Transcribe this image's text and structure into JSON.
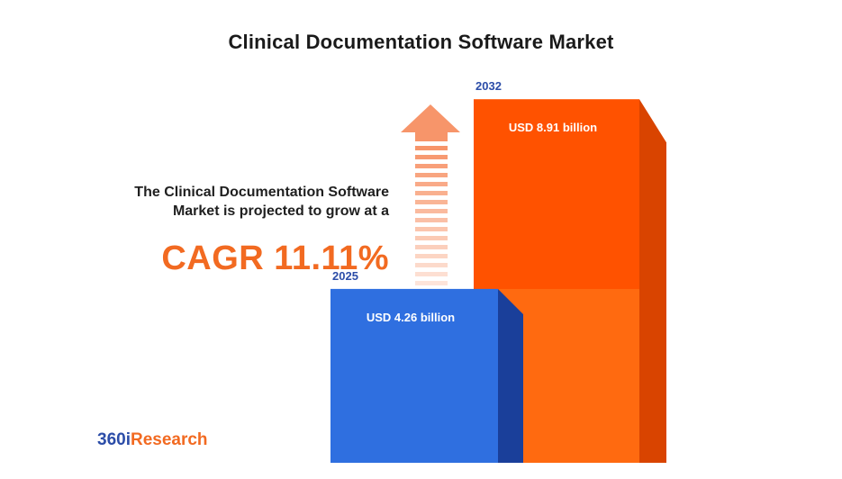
{
  "colors": {
    "bar_2025": "#2f6fe0",
    "bar_2025_side": "#1a3f9a",
    "bar_2032": "#ff5200",
    "bar_2032_side": "#d94400",
    "bar_2032_overlap": "#ff6a10",
    "arrow": "#f7956a",
    "cagr": "#f26a21",
    "brand_blue": "#2c4da8"
  },
  "chart_data": {
    "type": "bar",
    "title": "Clinical Documentation Software Market",
    "categories": [
      "2025",
      "2032"
    ],
    "values": [
      4.26,
      8.91
    ],
    "data_labels": [
      "USD 4.26 billion",
      "USD 8.91 billion"
    ],
    "unit": "USD billion",
    "ylim": [
      0,
      9.4
    ],
    "grid": false,
    "annotation": {
      "text": "The Clinical Documentation Software Market is projected to grow at a",
      "cagr": "CAGR 11.11%",
      "icon": "growth-arrow-icon"
    }
  },
  "brand": {
    "prefix": "360i",
    "suffix": "Research"
  }
}
